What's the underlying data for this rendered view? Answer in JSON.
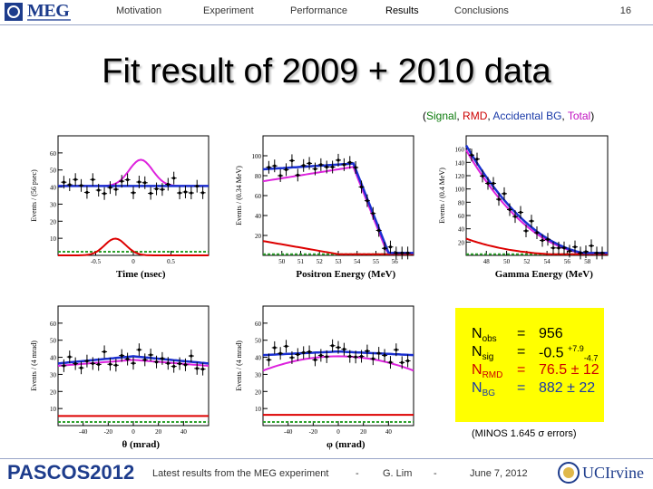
{
  "nav": {
    "logo": "MEG",
    "items": [
      "Motivation",
      "Experiment",
      "Performance",
      "Results",
      "Conclusions"
    ],
    "page_number": "16"
  },
  "title": "Fit result of 2009 + 2010 data",
  "legend": {
    "open": "(",
    "items": [
      {
        "label": "Signal",
        "color": "#0a7a0a",
        "sep": ", "
      },
      {
        "label": "RMD",
        "color": "#cc0000",
        "sep": ", "
      },
      {
        "label": "Accidental BG",
        "color": "#1a3aa8",
        "sep": ", "
      },
      {
        "label": "Total",
        "color": "#c010c0",
        "sep": ""
      }
    ],
    "close": ")"
  },
  "plots": [
    {
      "xlabel": "Time (nsec)",
      "ylabel": "Events / (56 psec)",
      "xticks": [
        "-0.5",
        "0",
        "0.5"
      ],
      "yticks": [
        "10",
        "20",
        "30",
        "40",
        "50",
        "60"
      ]
    },
    {
      "xlabel": "Positron Energy (MeV)",
      "ylabel": "Events / (0.34 MeV)",
      "xticks": [
        "50",
        "51",
        "52",
        "53",
        "54",
        "55",
        "56"
      ],
      "yticks": [
        "20",
        "40",
        "60",
        "80",
        "100"
      ]
    },
    {
      "xlabel": "Gamma Energy (MeV)",
      "ylabel": "Events / (0.4 MeV)",
      "xticks": [
        "48",
        "50",
        "52",
        "54",
        "56",
        "58"
      ],
      "yticks": [
        "20",
        "40",
        "60",
        "80",
        "100",
        "120",
        "140",
        "160"
      ]
    },
    {
      "xlabel": "θ (mrad)",
      "ylabel": "Events / (4 mrad)",
      "xticks": [
        "-40",
        "-20",
        "0",
        "20",
        "40"
      ],
      "yticks": [
        "10",
        "20",
        "30",
        "40",
        "50",
        "60"
      ]
    },
    {
      "xlabel": "φ (mrad)",
      "ylabel": "Events / (4 mrad)",
      "xticks": [
        "-40",
        "-20",
        "0",
        "20",
        "40"
      ],
      "yticks": [
        "10",
        "20",
        "30",
        "40",
        "50",
        "60"
      ]
    }
  ],
  "stats": [
    {
      "label": "N",
      "sub": "obs",
      "eq": "=",
      "value": "956",
      "sup": "",
      "sub2": ""
    },
    {
      "label": "N",
      "sub": "sig",
      "eq": "=",
      "value": "-0.5",
      "sup": "+7.9",
      "sub2": "-4.7"
    },
    {
      "label": "N",
      "sub": "RMD",
      "eq": "=",
      "value": "76.5 ± 12",
      "sup": "",
      "sub2": ""
    },
    {
      "label": "N",
      "sub": "BG",
      "eq": "=",
      "value": "882 ± 22",
      "sup": "",
      "sub2": ""
    }
  ],
  "minos_note": "(MINOS 1.645 σ errors)",
  "footer": {
    "conference": "PASCOS2012",
    "talk": "Latest results from the MEG experiment",
    "sep1": "-",
    "author": "G. Lim",
    "sep2": "-",
    "date": "June 7, 2012",
    "institution": "UCIrvine"
  },
  "colors": {
    "signal": "#2ca02c",
    "rmd": "#dd0000",
    "bg": "#1a2fd0",
    "total": "#dd22dd",
    "accent": "#1d3c8c"
  }
}
